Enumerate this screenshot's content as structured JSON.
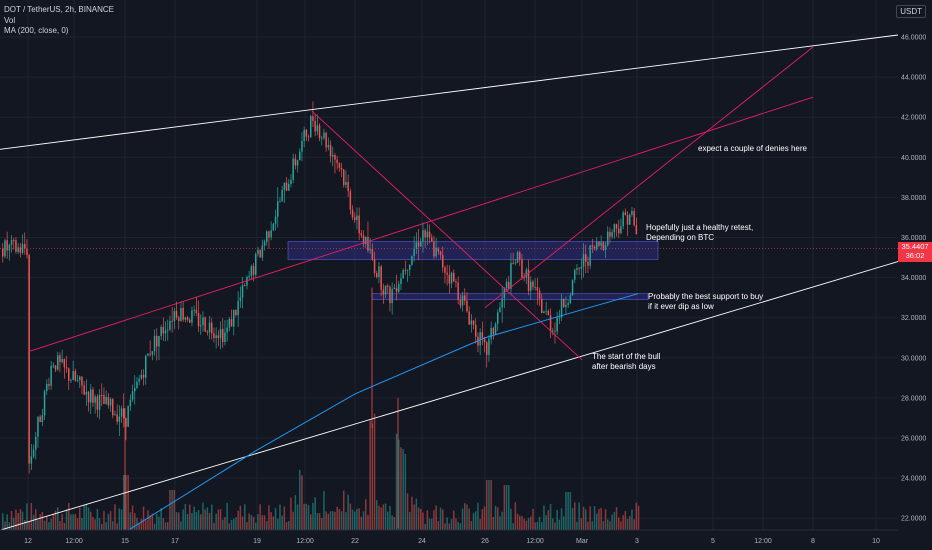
{
  "header": {
    "symbol_line": "DOT / TetherUS, 2h, BINANCE",
    "vol_label": "Vol",
    "ma_label": "MA (200, close, 0)",
    "currency": "USDT"
  },
  "last_price": {
    "value": "35.4407",
    "countdown": "36:02",
    "price": 35.44
  },
  "annotations": [
    {
      "id": "retest",
      "lines": [
        "Hopefully just a healthy retest,",
        "Depending on BTC"
      ]
    },
    {
      "id": "denies",
      "lines": [
        "expect a couple of denies here"
      ]
    },
    {
      "id": "support",
      "lines": [
        "Probably the best support to buy",
        "if it ever dip as low"
      ]
    },
    {
      "id": "bull",
      "lines": [
        "The start of the bull",
        "after bearish days"
      ]
    }
  ],
  "chart_data": {
    "type": "candlestick",
    "title": "DOT / TetherUS, 2h, BINANCE",
    "y_axis": {
      "ticks": [
        "46.0000",
        "44.0000",
        "42.0000",
        "40.0000",
        "38.0000",
        "36.0000",
        "34.0000",
        "32.0000",
        "30.0000",
        "28.0000",
        "26.0000",
        "24.0000",
        "22.0000"
      ],
      "range": [
        21.3,
        46.5
      ]
    },
    "x_axis": {
      "ticks": [
        "12",
        "12:00",
        "15",
        "17",
        "19",
        "12:00",
        "22",
        "24",
        "26",
        "12:00",
        "Mar",
        "3",
        "5",
        "12:00",
        "8",
        "10"
      ]
    },
    "key_closes": [
      {
        "t": "12",
        "price": 24.6
      },
      {
        "t": "13",
        "price": 29.9
      },
      {
        "t": "14",
        "price": 28.1
      },
      {
        "t": "15",
        "price": 27.0
      },
      {
        "t": "16",
        "price": 30.5
      },
      {
        "t": "17",
        "price": 32.4
      },
      {
        "t": "18",
        "price": 31.2
      },
      {
        "t": "19",
        "price": 35.0
      },
      {
        "t": "20",
        "price": 42.0
      },
      {
        "t": "21",
        "price": 39.5
      },
      {
        "t": "22",
        "price": 36.8
      },
      {
        "t": "23",
        "price": 33.0
      },
      {
        "t": "24",
        "price": 36.3
      },
      {
        "t": "25",
        "price": 33.6
      },
      {
        "t": "26",
        "price": 30.2
      },
      {
        "t": "27",
        "price": 35.0
      },
      {
        "t": "28",
        "price": 31.5
      },
      {
        "t": "Mar",
        "price": 34.8
      },
      {
        "t": "2",
        "price": 37.3
      },
      {
        "t": "2b",
        "price": 35.44
      }
    ],
    "ma200": [
      {
        "t": "15",
        "price": 21.3
      },
      {
        "t": "19",
        "price": 25.4
      },
      {
        "t": "22",
        "price": 28.2
      },
      {
        "t": "26",
        "price": 31.0
      },
      {
        "t": "Mar",
        "price": 32.4
      },
      {
        "t": "2b",
        "price": 33.2
      }
    ],
    "zones": [
      {
        "name": "resistance-retest-zone",
        "from": 34.9,
        "to": 35.8
      },
      {
        "name": "support-zone",
        "from": 32.9,
        "to": 33.2
      }
    ],
    "trendlines": [
      {
        "name": "upper-channel",
        "from": {
          "t": "start",
          "price": 40.4
        },
        "to": {
          "t": "end",
          "price": 46.1
        }
      },
      {
        "name": "lower-channel",
        "from": {
          "t": "start",
          "price": 21.4
        },
        "to": {
          "t": "end",
          "price": 34.8
        }
      },
      {
        "name": "red-rising-1",
        "from": {
          "t": "12",
          "price": 30.3
        },
        "to": {
          "t": "8",
          "price": 43.0
        }
      },
      {
        "name": "red-rising-2",
        "from": {
          "t": "26",
          "price": 32.5
        },
        "to": {
          "t": "8",
          "price": 45.5
        }
      },
      {
        "name": "red-falling",
        "from": {
          "t": "20",
          "price": 42.3
        },
        "to": {
          "t": "Mar",
          "price": 29.9
        }
      }
    ],
    "colors": {
      "background": "#131722",
      "up": "#26a69a",
      "down": "#ef5350",
      "ma": "#2196f3",
      "trend_red": "#e91e63",
      "channel": "#ffffff",
      "zone": "#3f3fbf"
    },
    "grid": true
  }
}
